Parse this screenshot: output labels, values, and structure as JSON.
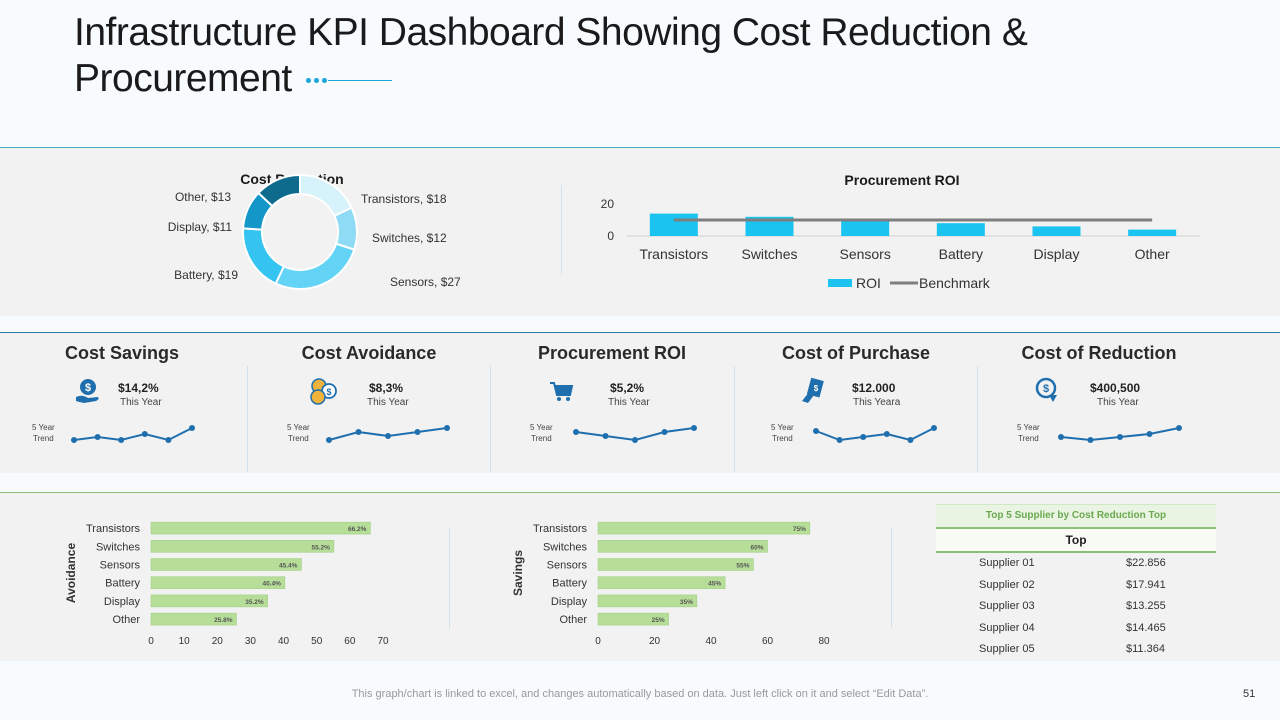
{
  "title": "Infrastructure KPI Dashboard Showing Cost Reduction & Procurement",
  "colors": {
    "accent": "#1aa6d8",
    "bar_blue": "#1ac3f0",
    "benchmark": "#7f7f7f",
    "bar_green": "#b6de99",
    "spark": "#1f6fae",
    "donut": [
      "#d6f2fb",
      "#8fdaf4",
      "#5fd0f5",
      "#2fc0ee",
      "#1596c8",
      "#0e6b8d"
    ]
  },
  "chart_data": [
    {
      "type": "pie",
      "title": "Cost Reduction",
      "categories": [
        "Transistors",
        "Switches",
        "Sensors",
        "Battery",
        "Display",
        "Other"
      ],
      "values": [
        18,
        12,
        27,
        19,
        11,
        13
      ],
      "labels": [
        "Transistors, $18",
        "Switches, $12",
        "Sensors, $27",
        "Battery, $19",
        "Display, $11",
        "Other, $13"
      ]
    },
    {
      "type": "bar",
      "title": "Procurement  ROI",
      "categories": [
        "Transistors",
        "Switches",
        "Sensors",
        "Battery",
        "Display",
        "Other"
      ],
      "series": [
        {
          "name": "ROI",
          "values": [
            14,
            12,
            10,
            8,
            6,
            4
          ]
        },
        {
          "name": "Benchmark",
          "values": [
            10,
            10,
            10,
            10,
            10,
            10
          ]
        }
      ],
      "yticks": [
        "0",
        "20"
      ],
      "ylim": [
        0,
        20
      ],
      "legend": [
        "ROI",
        "Benchmark"
      ]
    },
    {
      "type": "bar",
      "orientation": "horizontal",
      "ylabel": "Avoidance",
      "categories": [
        "Transistors",
        "Switches",
        "Sensors",
        "Battery",
        "Display",
        "Other"
      ],
      "values": [
        66.2,
        55.2,
        45.4,
        40.4,
        35.2,
        25.8
      ],
      "value_labels": [
        "66.2%",
        "55.2%",
        "45.4%",
        "40.4%",
        "35.2%",
        "25.8%"
      ],
      "xticks": [
        "0",
        "10",
        "20",
        "30",
        "40",
        "50",
        "60",
        "70"
      ],
      "xlim": [
        0,
        70
      ]
    },
    {
      "type": "bar",
      "orientation": "horizontal",
      "ylabel": "Savings",
      "categories": [
        "Transistors",
        "Switches",
        "Sensors",
        "Battery",
        "Display",
        "Other"
      ],
      "values": [
        75,
        60,
        55,
        45,
        35,
        25
      ],
      "value_labels": [
        "75%",
        "60%",
        "55%",
        "45%",
        "35%",
        "25%"
      ],
      "xticks": [
        "0",
        "20",
        "40",
        "60",
        "80"
      ],
      "xlim": [
        0,
        80
      ]
    }
  ],
  "kpis": [
    {
      "title": "Cost Savings",
      "value": "$14,2%",
      "sub": "This Year",
      "trend_label": [
        "5 Year",
        "Trend"
      ],
      "trend": [
        3,
        4,
        3,
        5,
        3,
        7
      ],
      "icon": "money-hand-icon"
    },
    {
      "title": "Cost Avoidance",
      "value": "$8,3%",
      "sub": "This Year",
      "trend_label": [
        "5 Year",
        "Trend"
      ],
      "trend": [
        2,
        6,
        4,
        6,
        8
      ],
      "icon": "coins-icon"
    },
    {
      "title": "Procurement ROI",
      "value": "$5,2%",
      "sub": "This Year",
      "trend_label": [
        "5 Year",
        "Trend"
      ],
      "trend": [
        6,
        5,
        4,
        6,
        7
      ],
      "icon": "cart-icon"
    },
    {
      "title": "Cost of Purchase",
      "value": "$12.000",
      "sub": "This Yeara",
      "trend_label": [
        "5 Year",
        "Trend"
      ],
      "trend": [
        6,
        3,
        4,
        5,
        3,
        7
      ],
      "icon": "purchase-icon"
    },
    {
      "title": "Cost of Reduction",
      "value": "$400,500",
      "sub": "This Year",
      "trend_label": [
        "5 Year",
        "Trend"
      ],
      "trend": [
        4,
        3,
        4,
        5,
        7
      ],
      "icon": "dollar-down-icon"
    }
  ],
  "supplier_table": {
    "title": "Top 5 Supplier by Cost Reduction Top",
    "header": "Top",
    "rows": [
      {
        "name": "Supplier 01",
        "value": "$22.856"
      },
      {
        "name": "Supplier 02",
        "value": "$17.941"
      },
      {
        "name": "Supplier 03",
        "value": "$13.255"
      },
      {
        "name": "Supplier 04",
        "value": "$14.465"
      },
      {
        "name": "Supplier 05",
        "value": "$11.364"
      }
    ]
  },
  "footer": "This graph/chart is linked to excel, and changes automatically based on data. Just left click on it and select “Edit Data”.",
  "page_number": "51"
}
